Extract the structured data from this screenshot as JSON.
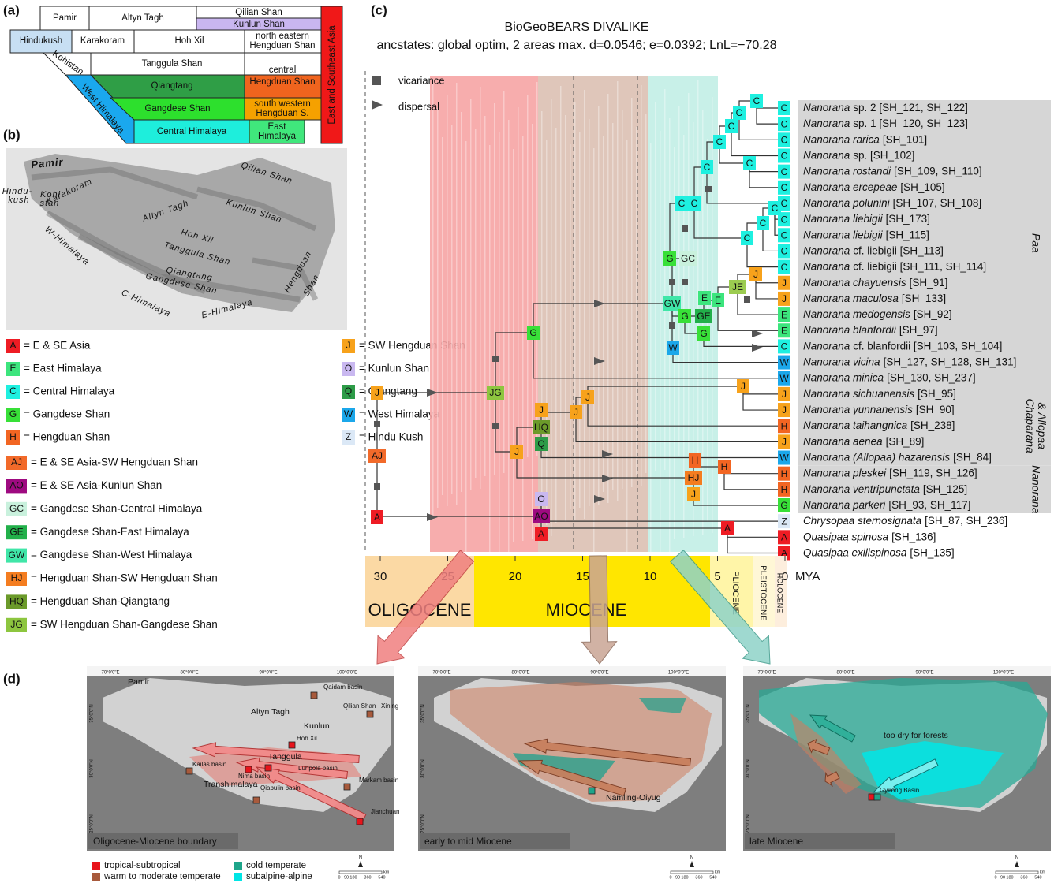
{
  "panel_a": {
    "label": "(a)",
    "blocks": [
      {
        "lines": [
          "Pamir"
        ]
      },
      {
        "lines": [
          "Altyn Tagh"
        ]
      },
      {
        "lines": [
          "Qilian Shan"
        ]
      },
      {
        "lines": [
          "Kunlun Shan"
        ]
      },
      {
        "lines": [
          "Hindukush"
        ]
      },
      {
        "lines": [
          "Karakoram"
        ]
      },
      {
        "lines": [
          "Hoh Xil"
        ]
      },
      {
        "lines": [
          "north eastern",
          "Hengduan Shan"
        ]
      },
      {
        "lines": [
          "Kohistan"
        ]
      },
      {
        "lines": [
          "Tanggula Shan"
        ]
      },
      {
        "lines": [
          "central"
        ]
      },
      {
        "lines": [
          "Hengduan Shan"
        ]
      },
      {
        "lines": [
          "Qiangtang"
        ]
      },
      {
        "lines": [
          "West Himalaya"
        ]
      },
      {
        "lines": [
          "Gangdese Shan"
        ]
      },
      {
        "lines": [
          "south western",
          "Hengduan S."
        ]
      },
      {
        "lines": [
          "Central Himalaya"
        ]
      },
      {
        "lines": [
          "East",
          "Himalaya"
        ]
      },
      {
        "lines": [
          "East and Southeast Asia"
        ]
      }
    ]
  },
  "panel_b": {
    "label": "(b)",
    "labels": [
      "Pamir",
      "Hindu-",
      "kush",
      "Karakoram",
      "Kohi",
      "stan",
      "Altyn Tagh",
      "Qilian Shan",
      "Hoh Xil",
      "Kunlun Shan",
      "Tanggula Shan",
      "Qiangtang",
      "W-Himalaya",
      "Gangdese Shan",
      "C-Himalaya",
      "E-Himalaya",
      "Hengduan",
      "Shan"
    ]
  },
  "legend": [
    {
      "code": "A",
      "text": "= E & SE Asia",
      "color": "#ee1c24"
    },
    {
      "code": "E",
      "text": "= East Himalaya",
      "color": "#3ce57d"
    },
    {
      "code": "C",
      "text": "= Central Himalaya",
      "color": "#1ef0e0"
    },
    {
      "code": "G",
      "text": "= Gangdese Shan",
      "color": "#38e038"
    },
    {
      "code": "H",
      "text": "= Hengduan Shan",
      "color": "#f26522"
    },
    {
      "code": "J",
      "text": "= SW Hengduan Shan",
      "color": "#f7a21b"
    },
    {
      "code": "O",
      "text": "= Kunlun Shan",
      "color": "#c9b8f0"
    },
    {
      "code": "Q",
      "text": "= Qiangtang",
      "color": "#2d9c48"
    },
    {
      "code": "W",
      "text": "= West Himalaya",
      "color": "#1ba7ea"
    },
    {
      "code": "Z",
      "text": "= Hindu Kush",
      "color": "#dbe8f6"
    },
    {
      "code": "AJ",
      "text": "= E & SE Asia-SW Hengduan Shan",
      "color": "#f26a2a"
    },
    {
      "code": "AO",
      "text": "= E & SE Asia-Kunlun Shan",
      "color": "#9e0a80"
    },
    {
      "code": "GC",
      "text": "= Gangdese Shan-Central Himalaya",
      "color": "#c9f1dd"
    },
    {
      "code": "GE",
      "text": "= Gangdese Shan-East Himalaya",
      "color": "#22b04a"
    },
    {
      "code": "GW",
      "text": "= Gangdese Shan-West Himalaya",
      "color": "#40e6a8"
    },
    {
      "code": "HJ",
      "text": "= Hengduan Shan-SW Hengduan Shan",
      "color": "#f47d20"
    },
    {
      "code": "HQ",
      "text": "= Hengduan Shan-Qiangtang",
      "color": "#6b9a2a"
    },
    {
      "code": "JG",
      "text": "= SW Hengduan Shan-Gangdese Shan",
      "color": "#8dc63f"
    }
  ],
  "panel_c": {
    "label": "(c)",
    "title": "BioGeoBEARS DIVALIKE",
    "subtitle": "ancstates: global optim, 2 areas max. d=0.0546; e=0.0392; LnL=−70.28",
    "vicariance": "vicariance",
    "dispersal": "dispersal",
    "node_labels": [
      "AJ",
      "J",
      "A",
      "JG",
      "G",
      "J",
      "GW",
      "W",
      "G",
      "GC",
      "C",
      "C",
      "C",
      "C",
      "C",
      "C",
      "C",
      "C",
      "C",
      "C",
      "C",
      "G",
      "GE",
      "E",
      "E",
      "JE",
      "J",
      "G",
      "HQ",
      "J",
      "J",
      "J",
      "J",
      "Q",
      "HJ",
      "H",
      "H",
      "J",
      "AO",
      "O",
      "A",
      "A"
    ],
    "tips": [
      {
        "code": "C",
        "name": "Nanorana",
        "rest": "sp. 2 [SH_121, SH_122]"
      },
      {
        "code": "C",
        "name": "Nanorana",
        "rest": "sp. 1 [SH_120, SH_123]"
      },
      {
        "code": "C",
        "name": "Nanorana rarica",
        "rest": "[SH_101]"
      },
      {
        "code": "C",
        "name": "Nanorana",
        "rest": "sp. [SH_102]"
      },
      {
        "code": "C",
        "name": "Nanorana rostandi",
        "rest": "[SH_109, SH_110]"
      },
      {
        "code": "C",
        "name": "Nanorana ercepeae",
        "rest": "[SH_105]"
      },
      {
        "code": "C",
        "name": "Nanorana polunini",
        "rest": "[SH_107, SH_108]"
      },
      {
        "code": "C",
        "name": "Nanorana liebigii",
        "rest": "[SH_173]"
      },
      {
        "code": "C",
        "name": "Nanorana liebigii",
        "rest": "[SH_115]"
      },
      {
        "code": "C",
        "name": "Nanorana",
        "rest": "cf. liebigii [SH_113]"
      },
      {
        "code": "C",
        "name": "Nanorana",
        "rest": "cf. liebigii [SH_111, SH_114]"
      },
      {
        "code": "J",
        "name": "Nanorana chayuensis",
        "rest": "[SH_91]"
      },
      {
        "code": "J",
        "name": "Nanorana maculosa",
        "rest": "[SH_133]"
      },
      {
        "code": "E",
        "name": "Nanorana medogensis",
        "rest": "[SH_92]"
      },
      {
        "code": "E",
        "name": "Nanorana blanfordii",
        "rest": "[SH_97]"
      },
      {
        "code": "C",
        "name": "Nanorana",
        "rest": "cf. blanfordii [SH_103, SH_104]"
      },
      {
        "code": "W",
        "name": "Nanorana vicina",
        "rest": "[SH_127, SH_128, SH_131]"
      },
      {
        "code": "W",
        "name": "Nanorana minica",
        "rest": "[SH_130, SH_237]"
      },
      {
        "code": "J",
        "name": "Nanorana sichuanensis",
        "rest": "[SH_95]"
      },
      {
        "code": "J",
        "name": "Nanorana yunnanensis",
        "rest": "[SH_90]"
      },
      {
        "code": "H",
        "name": "Nanorana taihangnica",
        "rest": "[SH_238]"
      },
      {
        "code": "J",
        "name": "Nanorana aenea",
        "rest": "[SH_89]"
      },
      {
        "code": "W",
        "name": "Nanorana (Allopaa) hazarensis",
        "rest": "[SH_84]"
      },
      {
        "code": "H",
        "name": "Nanorana pleskei",
        "rest": "[SH_119, SH_126]"
      },
      {
        "code": "H",
        "name": "Nanorana ventripunctata",
        "rest": "[SH_125]"
      },
      {
        "code": "G",
        "name": "Nanorana parkeri",
        "rest": "[SH_93, SH_117]"
      },
      {
        "code": "Z",
        "name": "Chrysopaa sternosignata",
        "rest": "[SH_87, SH_236]"
      },
      {
        "code": "A",
        "name": "Quasipaa spinosa",
        "rest": "[SH_136]"
      },
      {
        "code": "A",
        "name": "Quasipaa exilispinosa",
        "rest": "[SH_135]"
      }
    ],
    "clades": [
      {
        "lines": [
          "Paa"
        ]
      },
      {
        "lines": [
          "Chaparana",
          "& Allopaa"
        ]
      },
      {
        "lines": [
          "Nanorana"
        ]
      }
    ],
    "time_ticks": [
      30,
      25,
      20,
      15,
      10,
      5,
      0
    ],
    "time_unit": "MYA",
    "epochs": [
      "OLIGOCENE",
      "MIOCENE",
      "PLIOCENE",
      "PLEISTOCENE",
      "HOLOCENE"
    ]
  },
  "panel_d": {
    "label": "(d)",
    "maps": [
      {
        "caption": "Oligocene-Miocene boundary",
        "lon": [
          "70°0'0\"E",
          "80°0'0\"E",
          "90°0'0\"E",
          "100°0'0\"E"
        ],
        "lat": [
          "35°0'0\"N",
          "30°0'0\"N",
          "25°0'0\"N"
        ],
        "labels": [
          "Pamir",
          "Altyn Tagh",
          "Qaidam basin",
          "Qilian Shan",
          "Xining",
          "Kunlun",
          "Hoh Xil",
          "Tanggula",
          "Lunpola basin",
          "Nima basin",
          "Kailas basin",
          "Transhimalaya",
          "Qiabulin basin",
          "Markam basin",
          "Jianchuan"
        ]
      },
      {
        "caption": "early to mid Miocene",
        "lon": [
          "70°0'0\"E",
          "80°0'0\"E",
          "90°0'0\"E",
          "100°0'0\"E"
        ],
        "lat": [
          "35°0'0\"N",
          "30°0'0\"N",
          "25°0'0\"N"
        ],
        "labels": [
          "Namling-Oiyug"
        ]
      },
      {
        "caption": "late Miocene",
        "lon": [
          "70°0'0\"E",
          "80°0'0\"E",
          "90°0'0\"E",
          "100°0'0\"E"
        ],
        "lat": [
          "35°0'0\"N",
          "30°0'0\"N",
          "25°0'0\"N"
        ],
        "labels": [
          "too dry for forests",
          "Gyirong Basin"
        ]
      }
    ],
    "legend": [
      {
        "text": "tropical-subtropical",
        "color": "#e8141c"
      },
      {
        "text": "warm to moderate temperate",
        "color": "#a85a3c"
      },
      {
        "text": "cold temperate",
        "color": "#1ea58a"
      },
      {
        "text": "subalpine-alpine",
        "color": "#00e5e5"
      }
    ],
    "scale": {
      "north": "N",
      "ticks": [
        "0",
        "90",
        "180",
        "360",
        "540"
      ],
      "unit": "km"
    }
  }
}
